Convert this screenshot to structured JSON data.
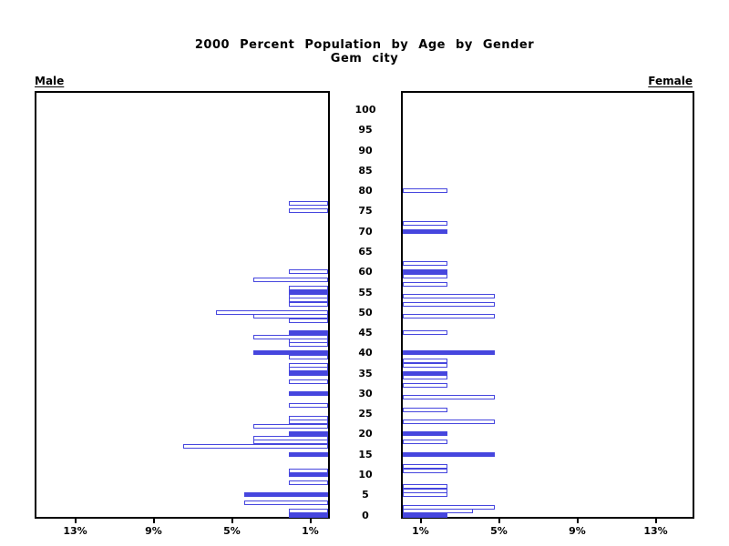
{
  "title": {
    "line1": "2000 Percent Population by Age by Gender",
    "line2": "Gem city"
  },
  "panel_labels": {
    "left": "Male",
    "right": "Female"
  },
  "colors": {
    "bar_blue": "#4646DE",
    "axis_black": "#000000",
    "background": "#FFFFFF"
  },
  "chart_data": {
    "type": "bar",
    "variant": "population-pyramid",
    "title": "2000 Percent Population by Age by Gender",
    "subtitle": "Gem city",
    "unit": "percent of total population",
    "grid": "off",
    "age_axis": {
      "min": 0,
      "max": 100,
      "step": 5,
      "ticks": [
        0,
        5,
        10,
        15,
        20,
        25,
        30,
        35,
        40,
        45,
        50,
        55,
        60,
        65,
        70,
        75,
        80,
        85,
        90,
        95,
        100
      ],
      "position": "center"
    },
    "pct_axis": {
      "max_pct": 15,
      "left_ticks": [
        {
          "value": 13,
          "label": "13%"
        },
        {
          "value": 9,
          "label": "9%"
        },
        {
          "value": 5,
          "label": "5%"
        },
        {
          "value": 1,
          "label": "1%"
        }
      ],
      "right_ticks": [
        {
          "value": 1,
          "label": "1%"
        },
        {
          "value": 5,
          "label": "5%"
        },
        {
          "value": 9,
          "label": "9%"
        },
        {
          "value": 13,
          "label": "13%"
        }
      ]
    },
    "series": [
      {
        "name": "Male",
        "side": "left",
        "bars": [
          {
            "age": 0,
            "pct": 2.0,
            "fill": "solid"
          },
          {
            "age": 1,
            "pct": 2.0,
            "fill": "hollow"
          },
          {
            "age": 3,
            "pct": 4.3,
            "fill": "hollow"
          },
          {
            "age": 5,
            "pct": 4.3,
            "fill": "solid"
          },
          {
            "age": 8,
            "pct": 2.0,
            "fill": "hollow"
          },
          {
            "age": 10,
            "pct": 2.0,
            "fill": "solid"
          },
          {
            "age": 11,
            "pct": 2.0,
            "fill": "hollow"
          },
          {
            "age": 15,
            "pct": 2.0,
            "fill": "solid"
          },
          {
            "age": 17,
            "pct": 7.4,
            "fill": "hollow"
          },
          {
            "age": 18,
            "pct": 3.8,
            "fill": "hollow"
          },
          {
            "age": 19,
            "pct": 3.8,
            "fill": "hollow"
          },
          {
            "age": 20,
            "pct": 2.0,
            "fill": "solid"
          },
          {
            "age": 22,
            "pct": 3.8,
            "fill": "hollow"
          },
          {
            "age": 23,
            "pct": 2.0,
            "fill": "hollow"
          },
          {
            "age": 24,
            "pct": 2.0,
            "fill": "hollow"
          },
          {
            "age": 27,
            "pct": 2.0,
            "fill": "hollow"
          },
          {
            "age": 30,
            "pct": 2.0,
            "fill": "solid"
          },
          {
            "age": 33,
            "pct": 2.0,
            "fill": "hollow"
          },
          {
            "age": 35,
            "pct": 2.0,
            "fill": "solid"
          },
          {
            "age": 36,
            "pct": 2.0,
            "fill": "hollow"
          },
          {
            "age": 37,
            "pct": 2.0,
            "fill": "hollow"
          },
          {
            "age": 39,
            "pct": 2.0,
            "fill": "hollow"
          },
          {
            "age": 40,
            "pct": 3.8,
            "fill": "solid"
          },
          {
            "age": 42,
            "pct": 2.0,
            "fill": "hollow"
          },
          {
            "age": 43,
            "pct": 2.0,
            "fill": "hollow"
          },
          {
            "age": 44,
            "pct": 3.8,
            "fill": "hollow"
          },
          {
            "age": 45,
            "pct": 2.0,
            "fill": "solid"
          },
          {
            "age": 48,
            "pct": 2.0,
            "fill": "hollow"
          },
          {
            "age": 49,
            "pct": 3.8,
            "fill": "hollow"
          },
          {
            "age": 50,
            "pct": 5.7,
            "fill": "hollow"
          },
          {
            "age": 52,
            "pct": 2.0,
            "fill": "hollow"
          },
          {
            "age": 53,
            "pct": 2.0,
            "fill": "hollow"
          },
          {
            "age": 54,
            "pct": 2.0,
            "fill": "hollow"
          },
          {
            "age": 55,
            "pct": 2.0,
            "fill": "solid"
          },
          {
            "age": 56,
            "pct": 2.0,
            "fill": "hollow"
          },
          {
            "age": 58,
            "pct": 3.8,
            "fill": "hollow"
          },
          {
            "age": 60,
            "pct": 2.0,
            "fill": "hollow"
          },
          {
            "age": 75,
            "pct": 2.0,
            "fill": "hollow"
          },
          {
            "age": 77,
            "pct": 2.0,
            "fill": "hollow"
          }
        ]
      },
      {
        "name": "Female",
        "side": "right",
        "bars": [
          {
            "age": 0,
            "pct": 2.3,
            "fill": "solid"
          },
          {
            "age": 1,
            "pct": 3.6,
            "fill": "hollow"
          },
          {
            "age": 2,
            "pct": 4.7,
            "fill": "hollow"
          },
          {
            "age": 5,
            "pct": 2.3,
            "fill": "hollow"
          },
          {
            "age": 6,
            "pct": 2.3,
            "fill": "hollow"
          },
          {
            "age": 7,
            "pct": 2.3,
            "fill": "hollow"
          },
          {
            "age": 11,
            "pct": 2.3,
            "fill": "hollow"
          },
          {
            "age": 12,
            "pct": 2.3,
            "fill": "hollow"
          },
          {
            "age": 15,
            "pct": 4.7,
            "fill": "solid"
          },
          {
            "age": 18,
            "pct": 2.3,
            "fill": "hollow"
          },
          {
            "age": 20,
            "pct": 2.3,
            "fill": "solid"
          },
          {
            "age": 23,
            "pct": 4.7,
            "fill": "hollow"
          },
          {
            "age": 26,
            "pct": 2.3,
            "fill": "hollow"
          },
          {
            "age": 29,
            "pct": 4.7,
            "fill": "hollow"
          },
          {
            "age": 32,
            "pct": 2.3,
            "fill": "hollow"
          },
          {
            "age": 34,
            "pct": 2.3,
            "fill": "hollow"
          },
          {
            "age": 35,
            "pct": 2.3,
            "fill": "solid"
          },
          {
            "age": 37,
            "pct": 2.3,
            "fill": "hollow"
          },
          {
            "age": 38,
            "pct": 2.3,
            "fill": "hollow"
          },
          {
            "age": 40,
            "pct": 4.7,
            "fill": "solid"
          },
          {
            "age": 45,
            "pct": 2.3,
            "fill": "hollow"
          },
          {
            "age": 49,
            "pct": 4.7,
            "fill": "hollow"
          },
          {
            "age": 52,
            "pct": 4.7,
            "fill": "hollow"
          },
          {
            "age": 54,
            "pct": 4.7,
            "fill": "hollow"
          },
          {
            "age": 57,
            "pct": 2.3,
            "fill": "hollow"
          },
          {
            "age": 59,
            "pct": 2.3,
            "fill": "hollow"
          },
          {
            "age": 60,
            "pct": 2.3,
            "fill": "solid"
          },
          {
            "age": 62,
            "pct": 2.3,
            "fill": "hollow"
          },
          {
            "age": 70,
            "pct": 2.3,
            "fill": "solid"
          },
          {
            "age": 72,
            "pct": 2.3,
            "fill": "hollow"
          },
          {
            "age": 80,
            "pct": 2.3,
            "fill": "hollow"
          }
        ]
      }
    ]
  }
}
